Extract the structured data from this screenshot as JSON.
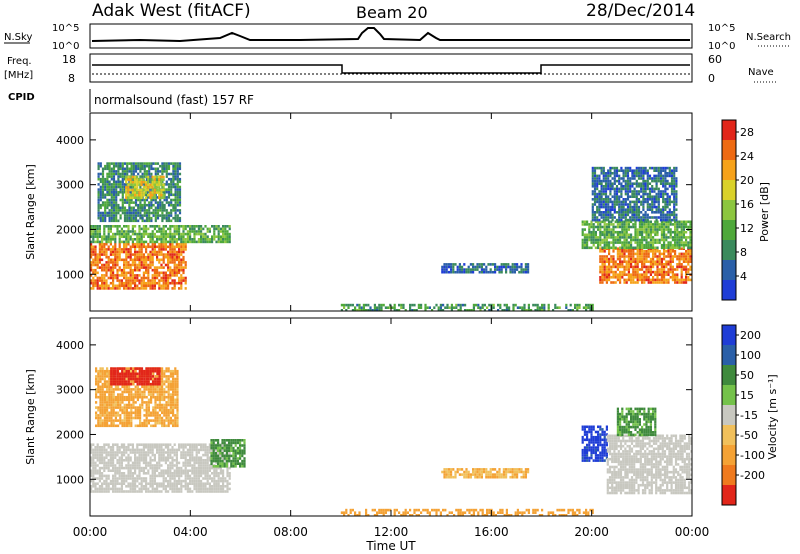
{
  "header": {
    "station": "Adak West (fitACF)",
    "beam": "Beam 20",
    "date": "28/Dec/2014"
  },
  "summary_panels": {
    "nsky_label": "N.Sky",
    "nsky_ticks": [
      "10^5",
      "10^0"
    ],
    "nsearch_label": "N.Search",
    "freq_label": "Freq.",
    "freq_unit": "[MHz]",
    "freq_ticks": [
      "18",
      "8"
    ],
    "nave_label": "Nave",
    "nave_ticks": [
      "60",
      "0"
    ],
    "cpid_label": "CPID",
    "cpid_text": "normalsound (fast) 157 RF"
  },
  "colors": {
    "power": [
      "#1f3dd6",
      "#2a5fa8",
      "#3a8a5c",
      "#4ea83a",
      "#8cc63f",
      "#d9d12a",
      "#f6a21a",
      "#ee6a12",
      "#e2261a"
    ],
    "velocity": {
      "pos_far": "#1f3dd6",
      "pos_mid": "#2a5fa8",
      "pos_low": "#3f8a3d",
      "pos_near": "#74c24a",
      "gs": "#c8c8c0",
      "neg_near": "#f1c05b",
      "neg_low": "#f4a235",
      "neg_mid": "#ef7a1e",
      "neg_far": "#e2261a"
    }
  },
  "chart_data": [
    {
      "type": "heatmap",
      "panel": "power",
      "ylabel": "Slant Range [km]",
      "xlabel": "Time UT",
      "x_ticks": [
        "00:00",
        "04:00",
        "08:00",
        "12:00",
        "16:00",
        "20:00",
        "00:00"
      ],
      "y_ticks": [
        1000,
        2000,
        3000,
        4000
      ],
      "ylim": [
        180,
        4600
      ],
      "xlim_hours": [
        0,
        24
      ],
      "colorbar": {
        "label": "Power [dB]",
        "ticks": [
          4,
          8,
          12,
          16,
          20,
          24,
          28
        ],
        "range": [
          0,
          30
        ]
      },
      "regions": [
        {
          "t0": 0.0,
          "t1": 3.8,
          "r0": 700,
          "r1": 1700,
          "value": 24
        },
        {
          "t0": 0.0,
          "t1": 5.6,
          "r0": 1700,
          "r1": 2100,
          "value": 12
        },
        {
          "t0": 0.3,
          "t1": 3.6,
          "r0": 2200,
          "r1": 3500,
          "value": 8
        },
        {
          "t0": 1.4,
          "t1": 2.9,
          "r0": 2700,
          "r1": 3200,
          "value": 18
        },
        {
          "t0": 14.0,
          "t1": 17.5,
          "r0": 1050,
          "r1": 1250,
          "value": 6
        },
        {
          "t0": 20.3,
          "t1": 24.0,
          "r0": 800,
          "r1": 1600,
          "value": 24
        },
        {
          "t0": 19.6,
          "t1": 24.0,
          "r0": 1600,
          "r1": 2200,
          "value": 12
        },
        {
          "t0": 20.0,
          "t1": 23.4,
          "r0": 2200,
          "r1": 3400,
          "value": 6
        },
        {
          "t0": 10.0,
          "t1": 20.0,
          "r0": 220,
          "r1": 340,
          "value": 10
        }
      ]
    },
    {
      "type": "heatmap",
      "panel": "velocity",
      "ylabel": "Slant Range [km]",
      "xlabel": "Time UT",
      "x_ticks": [
        "00:00",
        "04:00",
        "08:00",
        "12:00",
        "16:00",
        "20:00",
        "00:00"
      ],
      "y_ticks": [
        1000,
        2000,
        3000,
        4000
      ],
      "ylim": [
        180,
        4600
      ],
      "xlim_hours": [
        0,
        24
      ],
      "colorbar": {
        "label": "Velocity [m s⁻¹]",
        "ticks": [
          200,
          100,
          50,
          15,
          -15,
          -50,
          -100,
          -200
        ],
        "range": [
          -250,
          250
        ]
      },
      "regions": [
        {
          "t0": 0.0,
          "t1": 5.6,
          "r0": 700,
          "r1": 1800,
          "value": 0
        },
        {
          "t0": 0.2,
          "t1": 3.5,
          "r0": 2200,
          "r1": 3500,
          "value": -40
        },
        {
          "t0": 0.8,
          "t1": 2.8,
          "r0": 3150,
          "r1": 3500,
          "value": -180
        },
        {
          "t0": 4.8,
          "t1": 6.2,
          "r0": 1300,
          "r1": 1900,
          "value": 40
        },
        {
          "t0": 14.0,
          "t1": 17.5,
          "r0": 1050,
          "r1": 1250,
          "value": -30
        },
        {
          "t0": 19.6,
          "t1": 20.6,
          "r0": 1400,
          "r1": 2200,
          "value": 160
        },
        {
          "t0": 20.6,
          "t1": 24.0,
          "r0": 700,
          "r1": 2000,
          "value": 0
        },
        {
          "t0": 21.0,
          "t1": 22.5,
          "r0": 2000,
          "r1": 2600,
          "value": 40
        },
        {
          "t0": 10.0,
          "t1": 20.0,
          "r0": 220,
          "r1": 340,
          "value": -60
        }
      ]
    }
  ]
}
